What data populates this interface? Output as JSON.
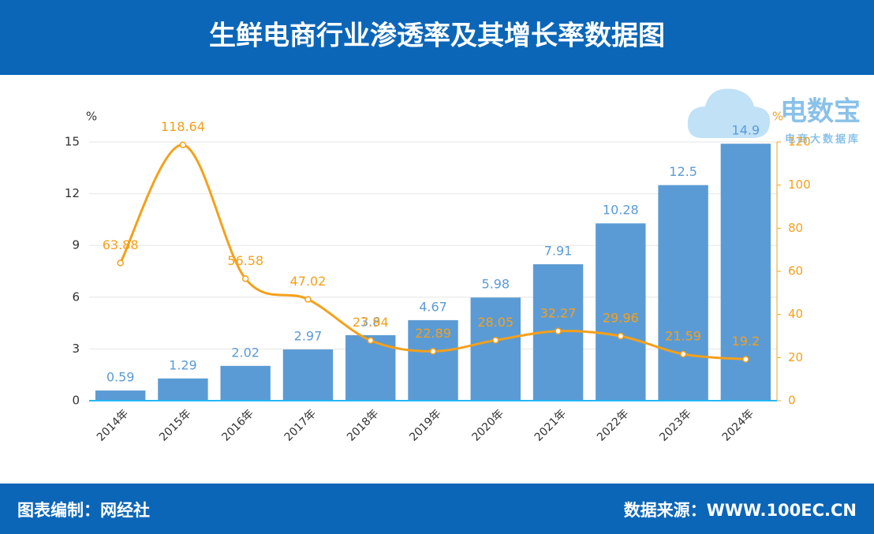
{
  "chart_data": {
    "type": "bar-line",
    "title": "生鲜电商行业渗透率及其增长率数据图",
    "categories": [
      "2014年",
      "2015年",
      "2016年",
      "2017年",
      "2018年",
      "2019年",
      "2020年",
      "2021年",
      "2022年",
      "2023年",
      "2024年"
    ],
    "series": [
      {
        "type": "bar",
        "color": "#5b9bd5",
        "values": [
          0.59,
          1.29,
          2.02,
          2.97,
          3.8,
          4.67,
          5.98,
          7.91,
          10.28,
          12.5,
          14.9
        ]
      },
      {
        "type": "line",
        "axis": "y2",
        "color": "#f5a01a",
        "values": [
          63.88,
          118.64,
          56.58,
          47.02,
          27.94,
          22.89,
          28.05,
          32.27,
          29.96,
          21.59,
          19.2
        ]
      }
    ],
    "ylabel": "%",
    "y2label": "%",
    "ylim": [
      0,
      15
    ],
    "yticks": [
      0,
      3,
      6,
      9,
      12,
      15
    ],
    "y2lim": [
      0,
      120
    ],
    "y2ticks": [
      0,
      20,
      40,
      60,
      80,
      100,
      120
    ],
    "grid": true,
    "logo": {
      "name": "电数宝",
      "sub": "电商大数据库"
    },
    "footer": {
      "left": "图表编制：网经社",
      "right": "数据来源：WWW.100EC.CN"
    }
  }
}
